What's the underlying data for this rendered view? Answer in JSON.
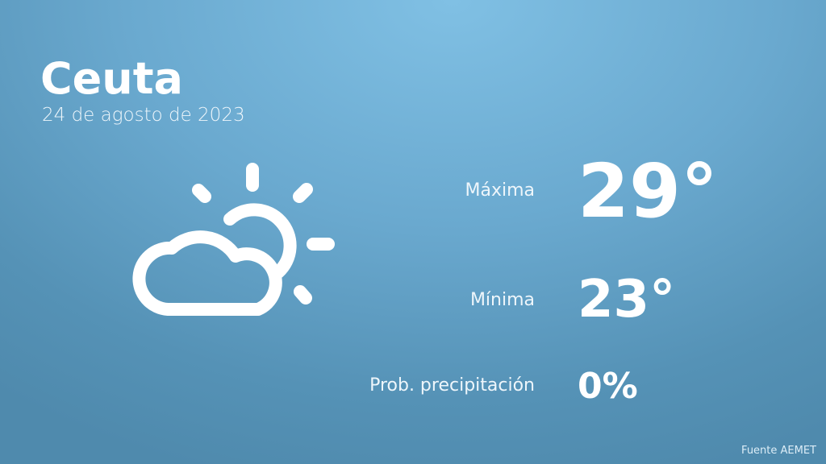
{
  "header": {
    "city": "Ceuta",
    "date": "24 de agosto de 2023"
  },
  "icon": "partly-cloudy-icon",
  "stats": [
    {
      "label": "Máxima",
      "value": "29°"
    },
    {
      "label": "Mínima",
      "value": "23°"
    },
    {
      "label": "Prob. precipitación",
      "value": "0%"
    }
  ],
  "footer": {
    "source": "Fuente AEMET"
  },
  "colors": {
    "background_top": "#80c0e4",
    "background_bottom": "#4f8aad",
    "text": "#ffffff"
  }
}
